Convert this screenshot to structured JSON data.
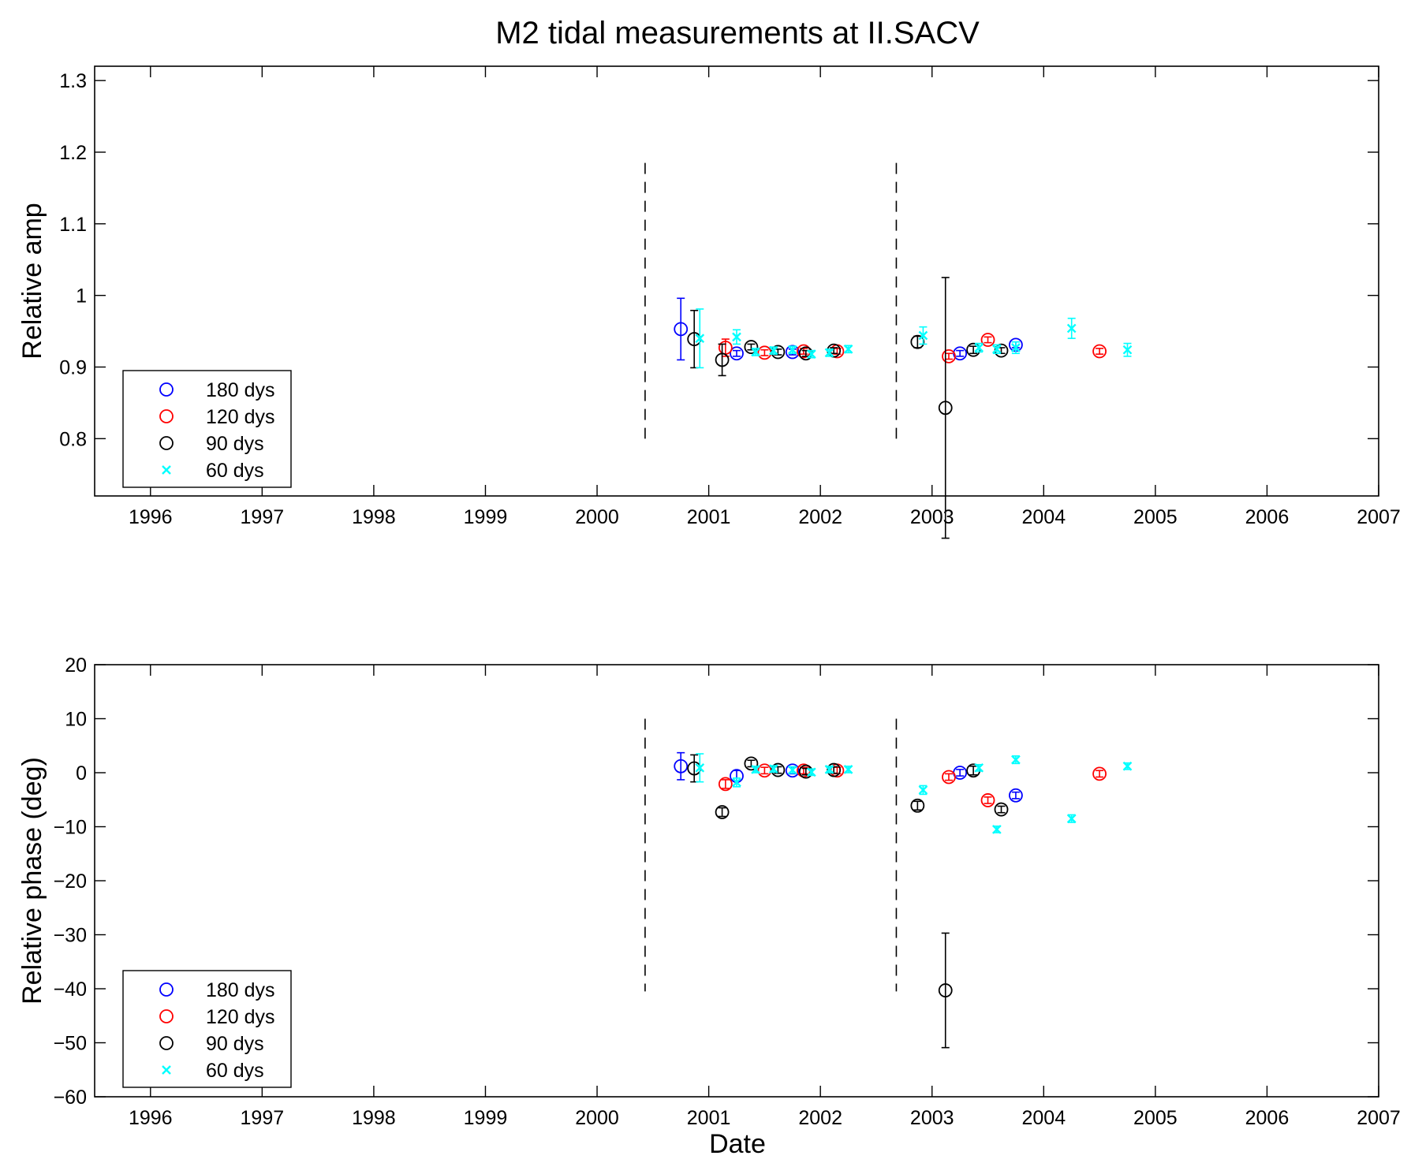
{
  "title": "M2 tidal measurements at II.SACV",
  "xlabel": "Date",
  "colors": {
    "180 dys": "#0000ff",
    "120 dys": "#ff0000",
    "90 dys": "#000000",
    "60 dys": "#00ffff",
    "event_line": "#000000"
  },
  "chart_data": [
    {
      "type": "scatter",
      "ylabel": "Relative amp",
      "xlim": [
        1995.5,
        2007
      ],
      "ylim": [
        0.72,
        1.32
      ],
      "xticks": [
        "1996",
        "1997",
        "1998",
        "1999",
        "2000",
        "2001",
        "2002",
        "2003",
        "2004",
        "2005",
        "2006",
        "2007"
      ],
      "yticks": [
        "0.8",
        "0.9",
        "1",
        "1.1",
        "1.2",
        "1.3"
      ],
      "legend": "bottom-left",
      "event_lines": [
        {
          "x": 2000.43,
          "y": [
            0.8,
            1.185
          ]
        },
        {
          "x": 2002.68,
          "y": [
            0.8,
            1.185
          ]
        }
      ],
      "series": [
        {
          "name": "180 dys",
          "marker": "circle",
          "points": [
            {
              "x": 2000.75,
              "y": 0.953,
              "err": 0.043
            },
            {
              "x": 2001.25,
              "y": 0.919,
              "err": 0.004
            },
            {
              "x": 2001.75,
              "y": 0.921,
              "err": 0.004
            },
            {
              "x": 2003.25,
              "y": 0.919,
              "err": 0.004
            },
            {
              "x": 2003.75,
              "y": 0.931,
              "err": 0.004
            }
          ]
        },
        {
          "name": "120 dys",
          "marker": "circle",
          "points": [
            {
              "x": 2001.15,
              "y": 0.927,
              "err": 0.012
            },
            {
              "x": 2001.5,
              "y": 0.92,
              "err": 0.004
            },
            {
              "x": 2001.85,
              "y": 0.922,
              "err": 0.004
            },
            {
              "x": 2002.15,
              "y": 0.922,
              "err": 0.004
            },
            {
              "x": 2003.15,
              "y": 0.915,
              "err": 0.004
            },
            {
              "x": 2003.5,
              "y": 0.938,
              "err": 0.004
            },
            {
              "x": 2004.5,
              "y": 0.922,
              "err": 0.004
            }
          ]
        },
        {
          "name": "90 dys",
          "marker": "circle",
          "points": [
            {
              "x": 2000.87,
              "y": 0.939,
              "err": 0.04
            },
            {
              "x": 2001.12,
              "y": 0.91,
              "err": 0.022
            },
            {
              "x": 2001.38,
              "y": 0.928,
              "err": 0.004
            },
            {
              "x": 2001.62,
              "y": 0.921,
              "err": 0.004
            },
            {
              "x": 2001.87,
              "y": 0.919,
              "err": 0.004
            },
            {
              "x": 2002.12,
              "y": 0.923,
              "err": 0.004
            },
            {
              "x": 2002.87,
              "y": 0.935,
              "err": 0.008
            },
            {
              "x": 2003.12,
              "y": 0.843,
              "err": 0.182
            },
            {
              "x": 2003.37,
              "y": 0.924,
              "err": 0.005
            },
            {
              "x": 2003.62,
              "y": 0.923,
              "err": 0.004
            }
          ]
        },
        {
          "name": "60 dys",
          "marker": "x",
          "points": [
            {
              "x": 2000.92,
              "y": 0.94,
              "err": 0.041
            },
            {
              "x": 2001.25,
              "y": 0.942,
              "err": 0.01
            },
            {
              "x": 2001.42,
              "y": 0.921,
              "err": 0.005
            },
            {
              "x": 2001.58,
              "y": 0.923,
              "err": 0.005
            },
            {
              "x": 2001.75,
              "y": 0.924,
              "err": 0.005
            },
            {
              "x": 2001.92,
              "y": 0.918,
              "err": 0.005
            },
            {
              "x": 2002.08,
              "y": 0.92,
              "err": 0.005
            },
            {
              "x": 2002.25,
              "y": 0.925,
              "err": 0.005
            },
            {
              "x": 2002.92,
              "y": 0.944,
              "err": 0.012
            },
            {
              "x": 2003.42,
              "y": 0.927,
              "err": 0.006
            },
            {
              "x": 2003.58,
              "y": 0.925,
              "err": 0.006
            },
            {
              "x": 2003.75,
              "y": 0.927,
              "err": 0.008
            },
            {
              "x": 2004.25,
              "y": 0.954,
              "err": 0.014
            },
            {
              "x": 2004.75,
              "y": 0.924,
              "err": 0.009
            }
          ]
        }
      ]
    },
    {
      "type": "scatter",
      "ylabel": "Relative phase (deg)",
      "xlabel": "Date",
      "xlim": [
        1995.5,
        2007
      ],
      "ylim": [
        -60,
        20
      ],
      "xticks": [
        "1996",
        "1997",
        "1998",
        "1999",
        "2000",
        "2001",
        "2002",
        "2003",
        "2004",
        "2005",
        "2006",
        "2007"
      ],
      "yticks": [
        "−60",
        "−50",
        "−40",
        "−30",
        "−20",
        "−10",
        "0",
        "10",
        "20"
      ],
      "legend": "bottom-left",
      "event_lines": [
        {
          "x": 2000.43,
          "y": [
            -40.5,
            10
          ]
        },
        {
          "x": 2002.68,
          "y": [
            -40.5,
            10
          ]
        }
      ],
      "series": [
        {
          "name": "180 dys",
          "marker": "circle",
          "points": [
            {
              "x": 2000.75,
              "y": 1.2,
              "err": 2.5
            },
            {
              "x": 2001.25,
              "y": -0.6,
              "err": 1.0
            },
            {
              "x": 2001.75,
              "y": 0.4,
              "err": 0.6
            },
            {
              "x": 2003.25,
              "y": 0.0,
              "err": 0.6
            },
            {
              "x": 2003.75,
              "y": -4.2,
              "err": 0.6
            }
          ]
        },
        {
          "name": "120 dys",
          "marker": "circle",
          "points": [
            {
              "x": 2001.15,
              "y": -2.1,
              "err": 0.8
            },
            {
              "x": 2001.5,
              "y": 0.4,
              "err": 0.6
            },
            {
              "x": 2001.85,
              "y": 0.4,
              "err": 0.6
            },
            {
              "x": 2002.15,
              "y": 0.4,
              "err": 0.6
            },
            {
              "x": 2003.15,
              "y": -0.8,
              "err": 0.6
            },
            {
              "x": 2003.5,
              "y": -5.1,
              "err": 0.6
            },
            {
              "x": 2004.5,
              "y": -0.2,
              "err": 0.6
            }
          ]
        },
        {
          "name": "90 dys",
          "marker": "circle",
          "points": [
            {
              "x": 2000.87,
              "y": 0.8,
              "err": 2.5
            },
            {
              "x": 2001.12,
              "y": -7.3,
              "err": 0.8
            },
            {
              "x": 2001.38,
              "y": 1.7,
              "err": 0.6
            },
            {
              "x": 2001.62,
              "y": 0.5,
              "err": 0.6
            },
            {
              "x": 2001.87,
              "y": 0.2,
              "err": 0.6
            },
            {
              "x": 2002.12,
              "y": 0.5,
              "err": 0.6
            },
            {
              "x": 2002.87,
              "y": -6.1,
              "err": 0.8
            },
            {
              "x": 2003.12,
              "y": -40.3,
              "err": 10.6
            },
            {
              "x": 2003.37,
              "y": 0.4,
              "err": 0.8
            },
            {
              "x": 2003.62,
              "y": -6.8,
              "err": 0.6
            }
          ]
        },
        {
          "name": "60 dys",
          "marker": "x",
          "points": [
            {
              "x": 2000.92,
              "y": 0.9,
              "err": 2.6
            },
            {
              "x": 2001.25,
              "y": -1.8,
              "err": 0.8
            },
            {
              "x": 2001.42,
              "y": 0.6,
              "err": 0.6
            },
            {
              "x": 2001.58,
              "y": 0.7,
              "err": 0.6
            },
            {
              "x": 2001.75,
              "y": 0.5,
              "err": 0.6
            },
            {
              "x": 2001.92,
              "y": 0.1,
              "err": 0.6
            },
            {
              "x": 2002.08,
              "y": 0.6,
              "err": 0.6
            },
            {
              "x": 2002.25,
              "y": 0.6,
              "err": 0.6
            },
            {
              "x": 2002.92,
              "y": -3.2,
              "err": 0.8
            },
            {
              "x": 2003.42,
              "y": 0.9,
              "err": 0.6
            },
            {
              "x": 2003.58,
              "y": -10.5,
              "err": 0.6
            },
            {
              "x": 2003.75,
              "y": 2.4,
              "err": 0.7
            },
            {
              "x": 2004.25,
              "y": -8.5,
              "err": 0.7
            },
            {
              "x": 2004.75,
              "y": 1.2,
              "err": 0.6
            }
          ]
        }
      ]
    }
  ]
}
